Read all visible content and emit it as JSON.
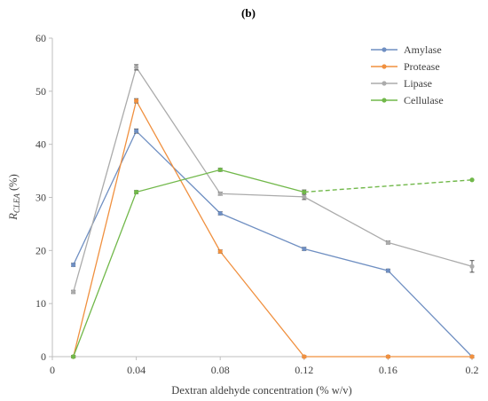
{
  "panel_label": "(b)",
  "chart_data": {
    "type": "line",
    "title": "",
    "xlabel": "Dextran aldehyde concentration (% w/v)",
    "ylabel_main": "R",
    "ylabel_sub": "CLEA",
    "ylabel_unit": " (%)",
    "xlim": [
      0,
      0.2
    ],
    "ylim": [
      0,
      60
    ],
    "x_ticks": [
      0,
      0.04,
      0.08,
      0.12,
      0.16,
      0.2
    ],
    "x_tick_labels": [
      "0",
      "0.04",
      "0.08",
      "0.12",
      "0.16",
      "0.2"
    ],
    "y_ticks": [
      0,
      10,
      20,
      30,
      40,
      50,
      60
    ],
    "y_tick_labels": [
      "0",
      "10",
      "20",
      "30",
      "40",
      "50",
      "60"
    ],
    "grid": false,
    "legend_position": "top-right",
    "series": [
      {
        "name": "Amylase",
        "color": "#6f8fc2",
        "x": [
          0.01,
          0.04,
          0.08,
          0.12,
          0.16,
          0.2
        ],
        "values": [
          17.3,
          42.5,
          27.0,
          20.3,
          16.2,
          0
        ],
        "error": [
          0.3,
          0.4,
          0.3,
          0.3,
          0.3,
          0.2
        ]
      },
      {
        "name": "Protease",
        "color": "#f0903f",
        "x": [
          0.01,
          0.04,
          0.08,
          0.12,
          0.16,
          0.2
        ],
        "values": [
          0,
          48.2,
          19.8,
          0,
          0,
          0
        ],
        "error": [
          0.2,
          0.4,
          0.3,
          0.2,
          0.2,
          0.2
        ]
      },
      {
        "name": "Lipase",
        "color": "#ababab",
        "x": [
          0.01,
          0.04,
          0.08,
          0.12,
          0.16,
          0.2
        ],
        "values": [
          12.2,
          54.5,
          30.7,
          30.1,
          21.5,
          17.0
        ],
        "error": [
          0.3,
          0.5,
          0.3,
          0.5,
          0.3,
          1.1
        ]
      },
      {
        "name": "Cellulase",
        "color": "#71b84a",
        "x": [
          0.01,
          0.04,
          0.08,
          0.12
        ],
        "values": [
          0,
          31.0,
          35.2,
          31.0
        ],
        "error": [
          0.2,
          0.3,
          0.3,
          0.4
        ],
        "dashed_extension": {
          "x": [
            0.12,
            0.2
          ],
          "values": [
            31.0,
            33.3
          ]
        }
      }
    ]
  }
}
